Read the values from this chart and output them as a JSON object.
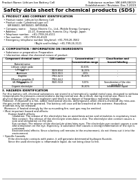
{
  "title": "Safety data sheet for chemical products (SDS)",
  "header_left": "Product Name: Lithium Ion Battery Cell",
  "header_right_l1": "Substance number: SM-UHR-00019",
  "header_right_l2": "Establishment / Revision: Dec.7,2019",
  "section1_title": "1. PRODUCT AND COMPANY IDENTIFICATION",
  "section1_lines": [
    "  • Product name: Lithium Ion Battery Cell",
    "  • Product code: Cylindrical-type cell",
    "       SM B6600, SM B6500, SM B500A",
    "  • Company name:     Sanyo Electric Co., Ltd., Mobile Energy Company",
    "  • Address:               22-21, Kamiairashi, Sumoto-City, Hyogo, Japan",
    "  • Telephone number:   +81-(799)-26-4111",
    "  • Fax number:   +81-(799)-26-4120",
    "  • Emergency telephone number (daytime): +81-799-26-3562",
    "                                          (Night and holiday): +81-799-26-3121"
  ],
  "section2_title": "2. COMPOSITION / INFORMATION ON INGREDIENTS",
  "section2_lines": [
    "  • Substance or preparation: Preparation",
    "  • Information about the chemical nature of product:"
  ],
  "table_col1_header": "Component chemical name",
  "table_col2_header": "CAS number",
  "table_col3_header": "Concentration /\nConcentration range",
  "table_col4_header": "Classification and\nhazard labeling",
  "table_row_header": [
    "Baterial name",
    "",
    "",
    ""
  ],
  "table_rows": [
    [
      "Lithium cobalt oxide\n(LiMnCoO(x))",
      "",
      "30-60%",
      ""
    ],
    [
      "Iron",
      "7439-89-6",
      "15-25%",
      "-"
    ],
    [
      "Aluminum",
      "7429-90-5",
      "2-6%",
      "-"
    ],
    [
      "Graphite\n(Mixed in graphite-1)\n(AI-Mn graphite-1)",
      "7782-42-5\n7782-44-2",
      "10-20%",
      "-"
    ],
    [
      "Copper",
      "7440-50-8",
      "5-15%",
      "Sensitization of the skin\ngroup No.2"
    ],
    [
      "Organic electrolyte",
      "",
      "10-20%",
      "Inflammable liquid"
    ]
  ],
  "section3_title": "3. HAZARDS IDENTIFICATION",
  "section3_para1": "For this battery cell, chemical substances are stored in a hermetically sealed metal case, designed to withstand\ntemperatures to pressures-concentrations during normal use. As a result, during normal use, there is no\nphysical danger of ignition or explosion and there is no danger of hazardous materials leakage.\nHowever, if exposed to a fire, added mechanical shocks, decomposed, when electro-chemical dry miss-use,\nthe gas inside cannot be operated. The battery cell case will be breached at the extreme. Hazardous\nmaterials may be released.\n  Moreover, if heated strongly by the surrounding fire, soot gas may be emitted.",
  "section3_bullet1_title": "• Most important hazard and effects:",
  "section3_bullet1_sub": "       Human health effects:\n            Inhalation: The release of the electrolyte has an anesthesia action and stimulates is respiratory tract.\n            Skin contact: The release of the electrolyte stimulates a skin. The electrolyte skin contact causes a\n            sore and stimulation on the skin.\n            Eye contact: The release of the electrolyte stimulates eyes. The electrolyte eye contact causes a sore\n            and stimulation on the eye. Especially, a substance that causes a strong inflammation of the eye is\n            contained.\n            Environmental effects: Since a battery cell remains in the environment, do not throw out it into the\n            environment.",
  "section3_bullet2_title": "• Specific hazards:",
  "section3_bullet2_sub": "       If the electrolyte contacts with water, it will generate detrimental hydrogen fluoride.\n       Since the used electrolyte is inflammable liquid, do not bring close to fire.",
  "bg_color": "#ffffff",
  "text_color": "#000000",
  "line_color": "#555555",
  "fs_header": 2.8,
  "fs_title": 5.2,
  "fs_section": 3.0,
  "fs_body": 2.5,
  "fs_table": 2.3
}
